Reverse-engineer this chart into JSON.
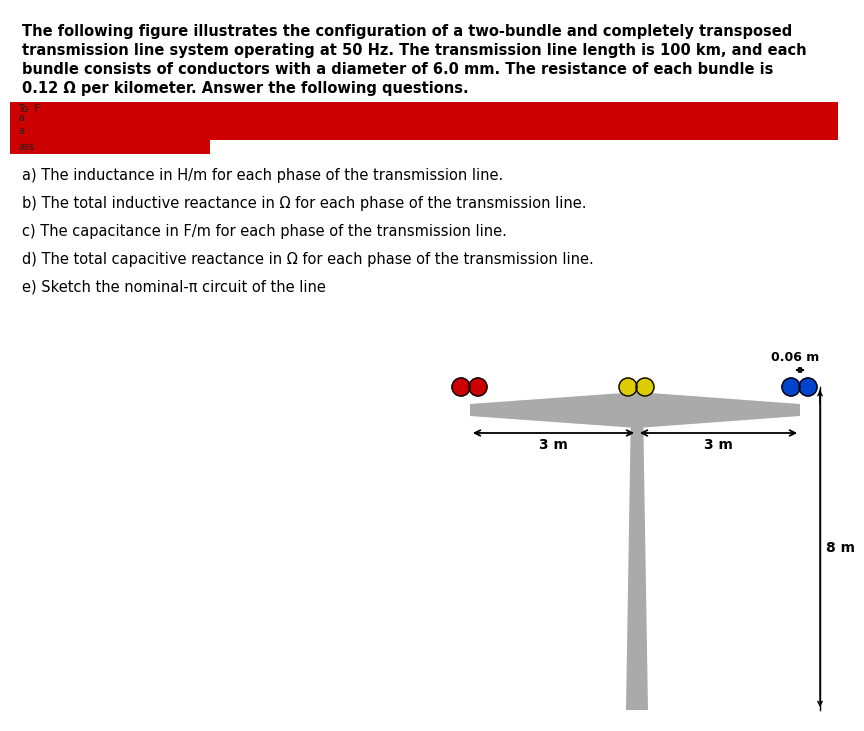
{
  "title_lines": [
    "The following figure illustrates the configuration of a two-bundle and completely transposed",
    "transmission line system operating at 50 Hz. The transmission line length is 100 km, and each",
    "bundle consists of conductors with a diameter of 6.0 mm. The resistance of each bundle is",
    "0.12 Ω per kilometer. Answer the following questions."
  ],
  "redacted_color": "#cc0000",
  "questions": [
    "a) The inductance in H/m for each phase of the transmission line.",
    "b) The total inductive reactance in Ω for each phase of the transmission line.",
    "c) The capacitance in F/m for each phase of the transmission line.",
    "d) The total capacitive reactance in Ω for each phase of the transmission line.",
    "e) Sketch the nominal-π circuit of the line"
  ],
  "tower_color": "#aaaaaa",
  "conductor_colors": [
    "#cc0000",
    "#ddcc00",
    "#0044cc"
  ],
  "bg_color": "#ffffff",
  "label_3m_left": "3 m",
  "label_3m_right": "3 m",
  "label_8m": "8 m",
  "label_006m": "0.06 m"
}
